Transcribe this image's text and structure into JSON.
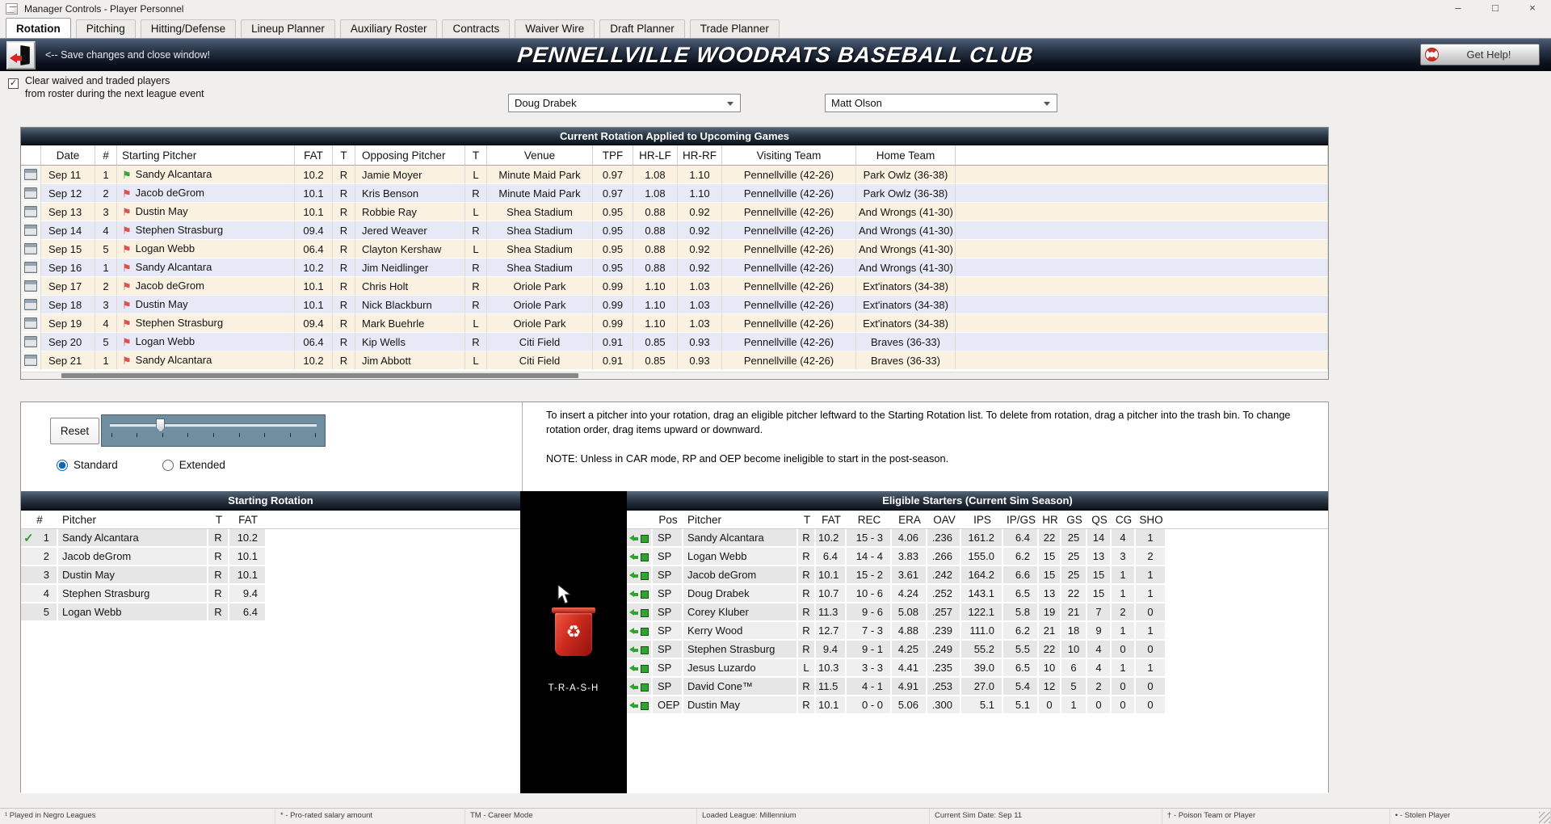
{
  "window": {
    "title": "Manager Controls - Player Personnel",
    "controls": {
      "minimize": "–",
      "maximize": "□",
      "close": "×"
    }
  },
  "tabs": [
    {
      "label": "Rotation",
      "active": true
    },
    {
      "label": "Pitching",
      "active": false
    },
    {
      "label": "Hitting/Defense",
      "active": false
    },
    {
      "label": "Lineup Planner",
      "active": false
    },
    {
      "label": "Auxiliary Roster",
      "active": false
    },
    {
      "label": "Contracts",
      "active": false
    },
    {
      "label": "Waiver Wire",
      "active": false
    },
    {
      "label": "Draft Planner",
      "active": false
    },
    {
      "label": "Trade Planner",
      "active": false
    }
  ],
  "banner": {
    "save_label": "<-- Save changes and close window!",
    "team_name": "PENNELLVILLE WOODRATS BASEBALL CLUB",
    "help_label": "Get Help!"
  },
  "options": {
    "clear_checked": true,
    "clear_line1": "Clear waived and traded players",
    "clear_line2": "from roster during the next league event"
  },
  "dropdowns": {
    "left_value": "Doug Drabek",
    "right_value": "Matt Olson"
  },
  "rotation_table": {
    "title": "Current Rotation Applied to Upcoming Games",
    "columns": [
      "Date",
      "#",
      "Starting Pitcher",
      "FAT",
      "T",
      "Opposing Pitcher",
      "T",
      "Venue",
      "TPF",
      "HR-LF",
      "HR-RF",
      "Visiting Team",
      "Home Team"
    ],
    "rows": [
      {
        "date": "Sep 11",
        "num": "1",
        "flag": "green",
        "pitcher": "Sandy Alcantara",
        "fat": "10.2",
        "t": "R",
        "opp": "Jamie Moyer",
        "opp_t": "L",
        "venue": "Minute Maid Park",
        "tpf": "0.97",
        "hr_lf": "1.08",
        "hr_rf": "1.10",
        "visiting": "Pennellville (42-26)",
        "home": "Park Owlz (36-38)"
      },
      {
        "date": "Sep 12",
        "num": "2",
        "flag": "red",
        "pitcher": "Jacob deGrom",
        "fat": "10.1",
        "t": "R",
        "opp": "Kris Benson",
        "opp_t": "R",
        "venue": "Minute Maid Park",
        "tpf": "0.97",
        "hr_lf": "1.08",
        "hr_rf": "1.10",
        "visiting": "Pennellville (42-26)",
        "home": "Park Owlz (36-38)"
      },
      {
        "date": "Sep 13",
        "num": "3",
        "flag": "red",
        "pitcher": "Dustin May",
        "fat": "10.1",
        "t": "R",
        "opp": "Robbie Ray",
        "opp_t": "L",
        "venue": "Shea Stadium",
        "tpf": "0.95",
        "hr_lf": "0.88",
        "hr_rf": "0.92",
        "visiting": "Pennellville (42-26)",
        "home": "And Wrongs (41-30)"
      },
      {
        "date": "Sep 14",
        "num": "4",
        "flag": "red",
        "pitcher": "Stephen Strasburg",
        "fat": "09.4",
        "t": "R",
        "opp": "Jered Weaver",
        "opp_t": "R",
        "venue": "Shea Stadium",
        "tpf": "0.95",
        "hr_lf": "0.88",
        "hr_rf": "0.92",
        "visiting": "Pennellville (42-26)",
        "home": "And Wrongs (41-30)"
      },
      {
        "date": "Sep 15",
        "num": "5",
        "flag": "red",
        "pitcher": "Logan Webb",
        "fat": "06.4",
        "t": "R",
        "opp": "Clayton Kershaw",
        "opp_t": "L",
        "venue": "Shea Stadium",
        "tpf": "0.95",
        "hr_lf": "0.88",
        "hr_rf": "0.92",
        "visiting": "Pennellville (42-26)",
        "home": "And Wrongs (41-30)"
      },
      {
        "date": "Sep 16",
        "num": "1",
        "flag": "red",
        "pitcher": "Sandy Alcantara",
        "fat": "10.2",
        "t": "R",
        "opp": "Jim Neidlinger",
        "opp_t": "R",
        "venue": "Shea Stadium",
        "tpf": "0.95",
        "hr_lf": "0.88",
        "hr_rf": "0.92",
        "visiting": "Pennellville (42-26)",
        "home": "And Wrongs (41-30)"
      },
      {
        "date": "Sep 17",
        "num": "2",
        "flag": "red",
        "pitcher": "Jacob deGrom",
        "fat": "10.1",
        "t": "R",
        "opp": "Chris Holt",
        "opp_t": "R",
        "venue": "Oriole Park",
        "tpf": "0.99",
        "hr_lf": "1.10",
        "hr_rf": "1.03",
        "visiting": "Pennellville (42-26)",
        "home": "Ext'inators (34-38)"
      },
      {
        "date": "Sep 18",
        "num": "3",
        "flag": "red",
        "pitcher": "Dustin May",
        "fat": "10.1",
        "t": "R",
        "opp": "Nick Blackburn",
        "opp_t": "R",
        "venue": "Oriole Park",
        "tpf": "0.99",
        "hr_lf": "1.10",
        "hr_rf": "1.03",
        "visiting": "Pennellville (42-26)",
        "home": "Ext'inators (34-38)"
      },
      {
        "date": "Sep 19",
        "num": "4",
        "flag": "red",
        "pitcher": "Stephen Strasburg",
        "fat": "09.4",
        "t": "R",
        "opp": "Mark Buehrle",
        "opp_t": "L",
        "venue": "Oriole Park",
        "tpf": "0.99",
        "hr_lf": "1.10",
        "hr_rf": "1.03",
        "visiting": "Pennellville (42-26)",
        "home": "Ext'inators (34-38)"
      },
      {
        "date": "Sep 20",
        "num": "5",
        "flag": "red",
        "pitcher": "Logan Webb",
        "fat": "06.4",
        "t": "R",
        "opp": "Kip Wells",
        "opp_t": "R",
        "venue": "Citi Field",
        "tpf": "0.91",
        "hr_lf": "0.85",
        "hr_rf": "0.93",
        "visiting": "Pennellville (42-26)",
        "home": "Braves (36-33)"
      },
      {
        "date": "Sep 21",
        "num": "1",
        "flag": "red",
        "pitcher": "Sandy Alcantara",
        "fat": "10.2",
        "t": "R",
        "opp": "Jim Abbott",
        "opp_t": "L",
        "venue": "Citi Field",
        "tpf": "0.91",
        "hr_lf": "0.85",
        "hr_rf": "0.93",
        "visiting": "Pennellville (42-26)",
        "home": "Braves (36-33)"
      }
    ]
  },
  "controls_panel": {
    "reset_label": "Reset",
    "standard_label": "Standard",
    "extended_label": "Extended",
    "selected": "Standard",
    "slider_ticks": 9,
    "slider_thumb_percent": 26
  },
  "instructions": {
    "para1": "To insert a pitcher into your rotation, drag an eligible pitcher leftward to the Starting Rotation list. To delete from rotation, drag a pitcher into the trash bin. To change rotation order, drag items upward or downward.",
    "note": "NOTE: Unless in CAR mode, RP and OEP become ineligible to start in the post-season."
  },
  "starting_rotation": {
    "title": "Starting Rotation",
    "columns": [
      "#",
      "Pitcher",
      "T",
      "FAT"
    ],
    "rows": [
      {
        "num": "1",
        "pitcher": "Sandy Alcantara",
        "t": "R",
        "fat": "10.2",
        "check": true
      },
      {
        "num": "2",
        "pitcher": "Jacob deGrom",
        "t": "R",
        "fat": "10.1",
        "check": false
      },
      {
        "num": "3",
        "pitcher": "Dustin May",
        "t": "R",
        "fat": "10.1",
        "check": false
      },
      {
        "num": "4",
        "pitcher": "Stephen Strasburg",
        "t": "R",
        "fat": "9.4",
        "check": false
      },
      {
        "num": "5",
        "pitcher": "Logan Webb",
        "t": "R",
        "fat": "6.4",
        "check": false
      }
    ]
  },
  "trash": {
    "label": "T-R-A-S-H"
  },
  "eligible_starters": {
    "title": "Eligible Starters (Current Sim Season)",
    "columns": [
      "Pos",
      "Pitcher",
      "T",
      "FAT",
      "REC",
      "ERA",
      "OAV",
      "IPS",
      "IP/GS",
      "HR",
      "GS",
      "QS",
      "CG",
      "SHO"
    ],
    "rows": [
      [
        "SP",
        "Sandy Alcantara",
        "R",
        "10.2",
        "15 - 3",
        "4.06",
        ".236",
        "161.2",
        "6.4",
        "22",
        "25",
        "14",
        "4",
        "1"
      ],
      [
        "SP",
        "Logan Webb",
        "R",
        "6.4",
        "14 - 4",
        "3.83",
        ".266",
        "155.0",
        "6.2",
        "15",
        "25",
        "13",
        "3",
        "2"
      ],
      [
        "SP",
        "Jacob deGrom",
        "R",
        "10.1",
        "15 - 2",
        "3.61",
        ".242",
        "164.2",
        "6.6",
        "15",
        "25",
        "15",
        "1",
        "1"
      ],
      [
        "SP",
        "Doug Drabek",
        "R",
        "10.7",
        "10 - 6",
        "4.24",
        ".252",
        "143.1",
        "6.5",
        "13",
        "22",
        "15",
        "1",
        "1"
      ],
      [
        "SP",
        "Corey Kluber",
        "R",
        "11.3",
        "9 - 6",
        "5.08",
        ".257",
        "122.1",
        "5.8",
        "19",
        "21",
        "7",
        "2",
        "0"
      ],
      [
        "SP",
        "Kerry Wood",
        "R",
        "12.7",
        "7 - 3",
        "4.88",
        ".239",
        "111.0",
        "6.2",
        "21",
        "18",
        "9",
        "1",
        "1"
      ],
      [
        "SP",
        "Stephen Strasburg",
        "R",
        "9.4",
        "9 - 1",
        "4.25",
        ".249",
        "55.2",
        "5.5",
        "22",
        "10",
        "4",
        "0",
        "0"
      ],
      [
        "SP",
        "Jesus Luzardo",
        "L",
        "10.3",
        "3 - 3",
        "4.41",
        ".235",
        "39.0",
        "6.5",
        "10",
        "6",
        "4",
        "1",
        "1"
      ],
      [
        "SP",
        "David Cone™",
        "R",
        "11.5",
        "4 - 1",
        "4.91",
        ".253",
        "27.0",
        "5.4",
        "12",
        "5",
        "2",
        "0",
        "0"
      ],
      [
        "OEP",
        "Dustin May",
        "R",
        "10.1",
        "0 - 0",
        "5.06",
        ".300",
        "5.1",
        "5.1",
        "0",
        "1",
        "0",
        "0",
        "0"
      ]
    ]
  },
  "status_bar": [
    "¹ Played in Negro Leagues",
    "* - Pro-rated salary amount",
    "TM - Career Mode",
    "Loaded League: Millennium",
    "Current Sim Date: Sep 11",
    "† - Poison Team or Player",
    "• - Stolen Player"
  ],
  "icons": {
    "flag": "⚑",
    "check": "✓",
    "recycle": "♻"
  },
  "colors": {
    "row_cream": "#FAF1E0",
    "row_lavender": "#E8E9F6",
    "flag_green": "#3BA13B",
    "flag_red": "#D9534F",
    "check_green": "#2E9B2E",
    "eligible_icon_green": "#2FA52F",
    "radio_blue": "#1166B5",
    "trash_red": "#CC2A1E",
    "slider_track": "#6F8EA0",
    "help_ring_red": "#CC3322"
  }
}
